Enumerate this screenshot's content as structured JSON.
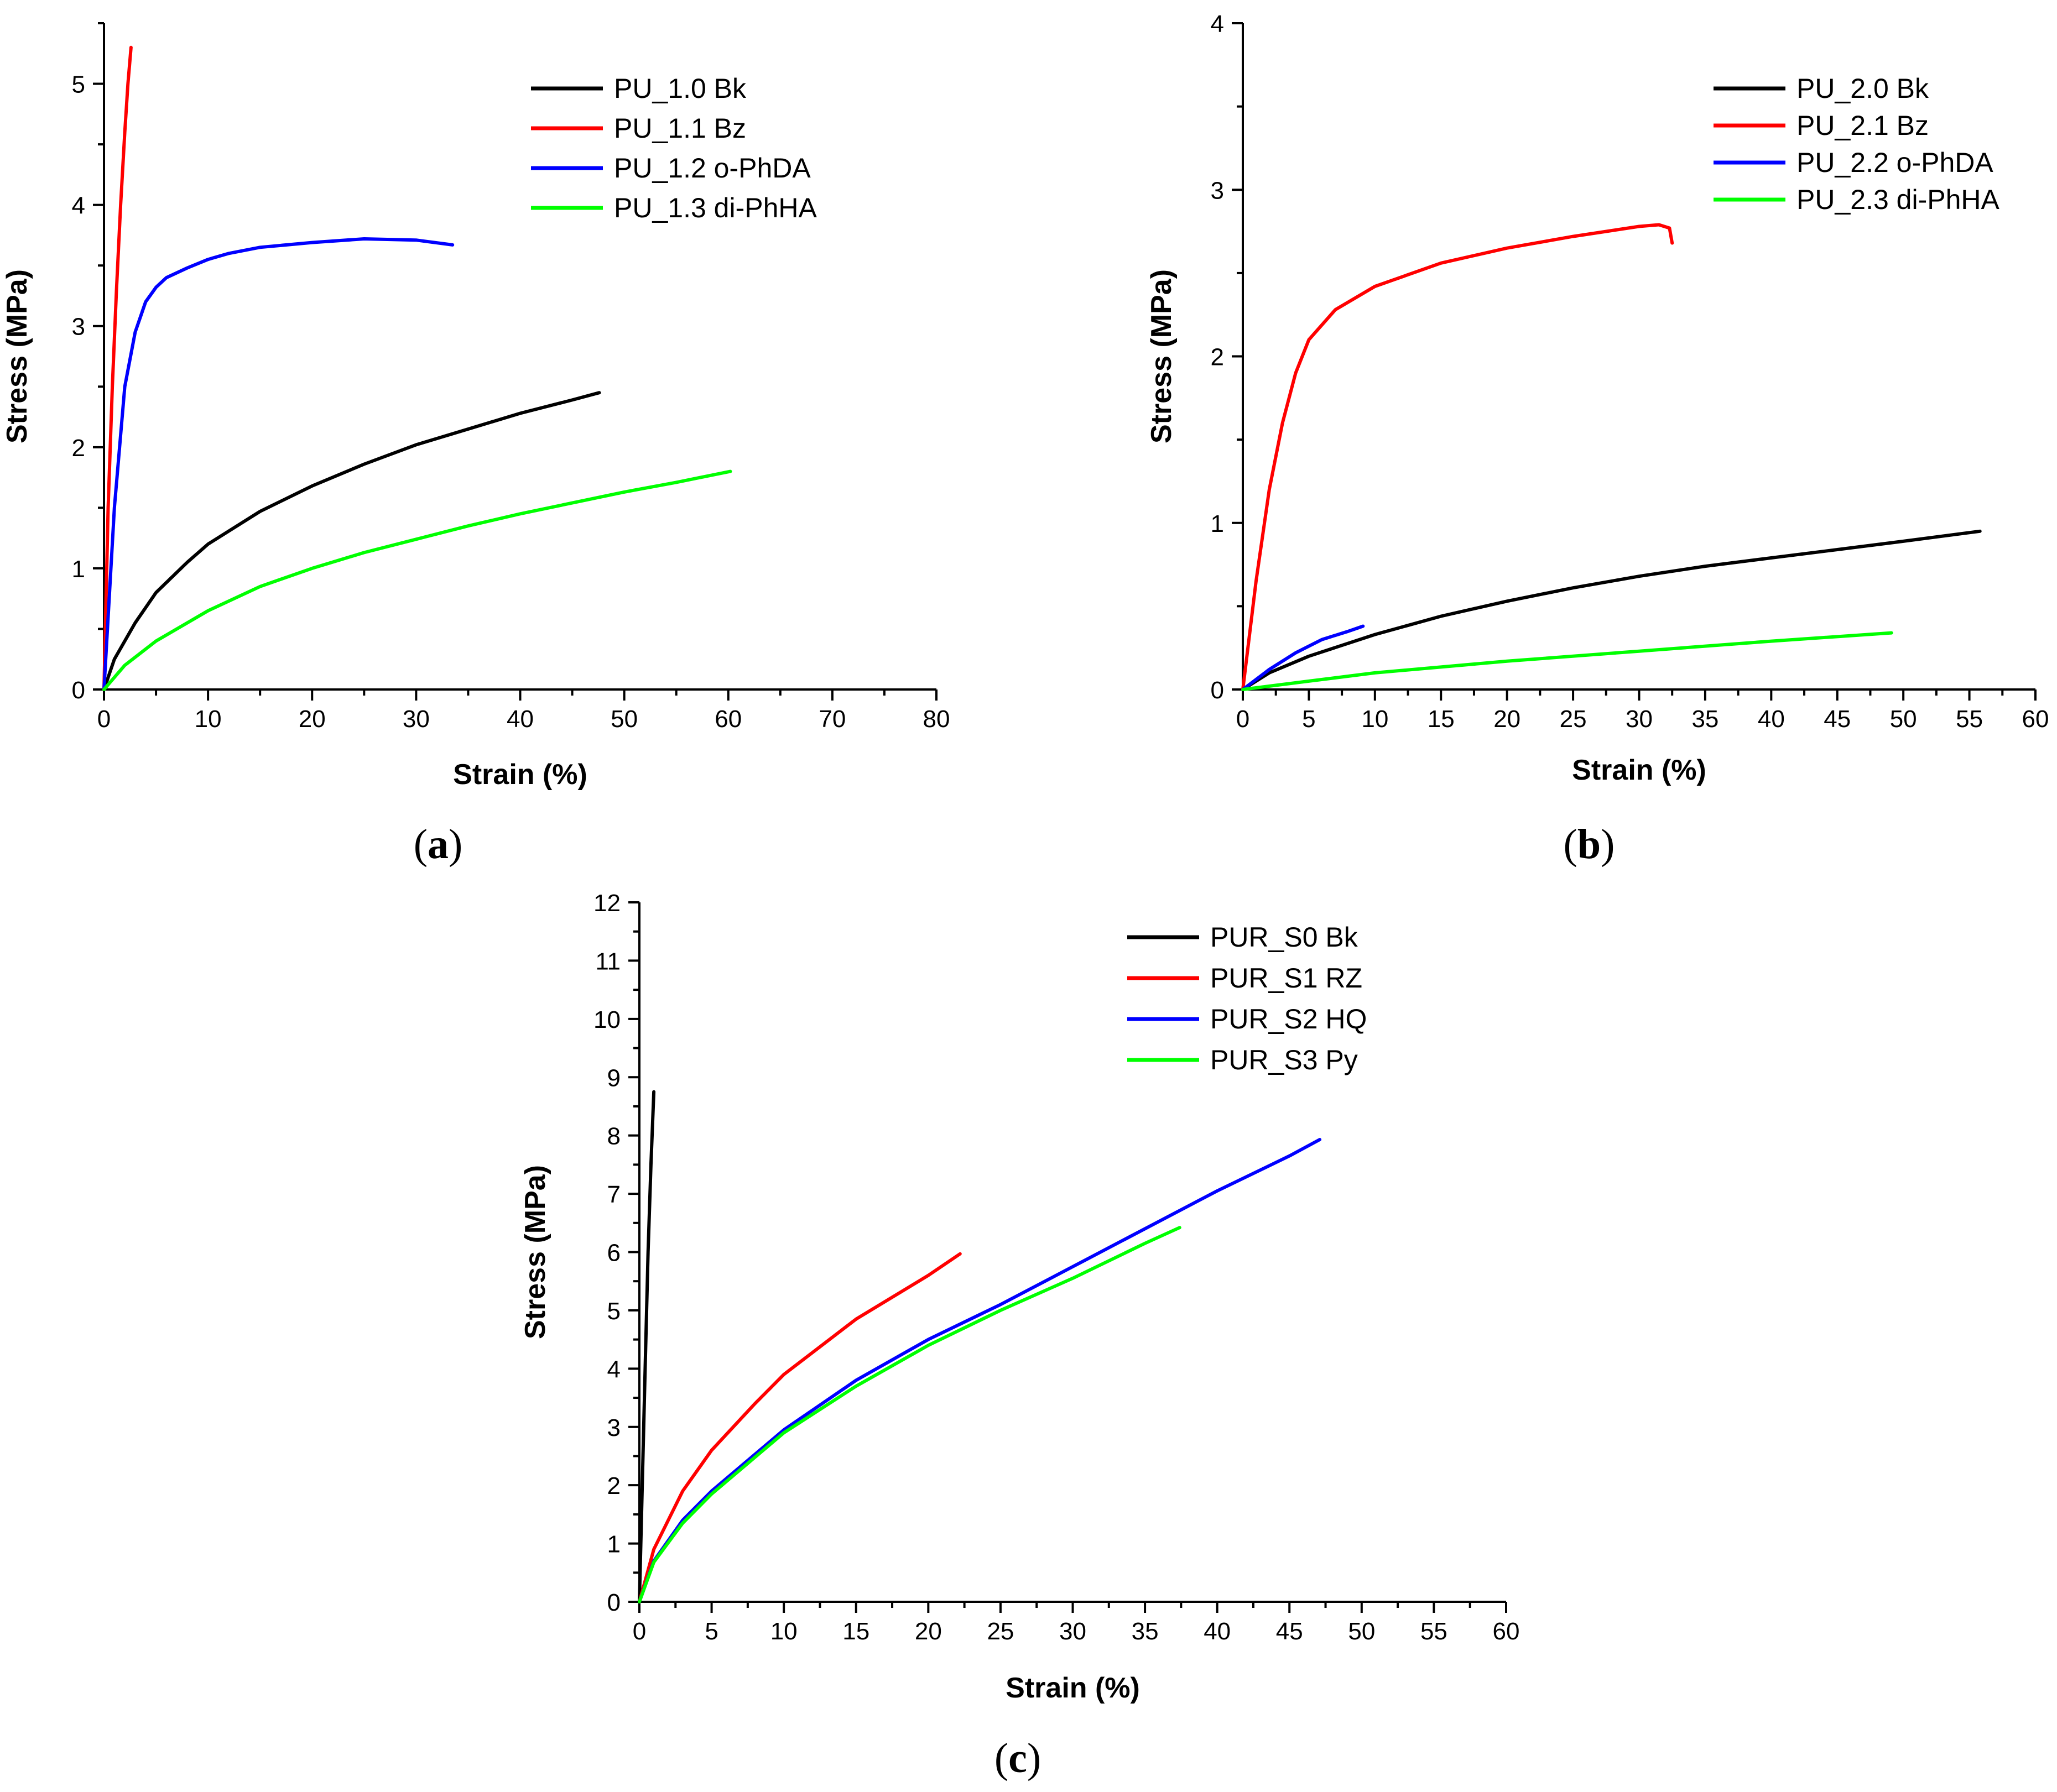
{
  "chart_data": [
    {
      "type": "line",
      "panel_label": "(a)",
      "xlabel": "Strain (%)",
      "ylabel": "Stress (MPa)",
      "xlim": [
        0,
        80
      ],
      "ylim": [
        0,
        5.5
      ],
      "xticks": [
        0,
        10,
        20,
        30,
        40,
        50,
        60,
        70,
        80
      ],
      "yticks": [
        0,
        1,
        2,
        3,
        4,
        5
      ],
      "legend_position": "top-right",
      "series": [
        {
          "name": "PU_1.0 Bk",
          "color": "#000000",
          "x": [
            0,
            1,
            3,
            5,
            8,
            10,
            15,
            20,
            25,
            30,
            35,
            40,
            45,
            47.6
          ],
          "y": [
            0,
            0.25,
            0.55,
            0.8,
            1.05,
            1.2,
            1.47,
            1.68,
            1.86,
            2.02,
            2.15,
            2.28,
            2.39,
            2.45
          ]
        },
        {
          "name": "PU_1.1 Bz",
          "color": "#ff0000",
          "x": [
            0,
            0.4,
            0.8,
            1.2,
            1.6,
            2.0,
            2.3,
            2.6
          ],
          "y": [
            0,
            1.5,
            2.5,
            3.3,
            4.0,
            4.6,
            5.0,
            5.3
          ]
        },
        {
          "name": "PU_1.2 o-PhDA",
          "color": "#0000ff",
          "x": [
            0,
            1,
            2,
            3,
            4,
            5,
            6,
            8,
            10,
            12,
            15,
            20,
            25,
            30,
            33.5
          ],
          "y": [
            0,
            1.5,
            2.5,
            2.95,
            3.2,
            3.32,
            3.4,
            3.48,
            3.55,
            3.6,
            3.65,
            3.69,
            3.72,
            3.71,
            3.67
          ]
        },
        {
          "name": "PU_1.3 di-PhHA",
          "color": "#00ff00",
          "x": [
            0,
            2,
            5,
            10,
            15,
            20,
            25,
            30,
            35,
            40,
            45,
            50,
            55,
            60.2
          ],
          "y": [
            0,
            0.2,
            0.4,
            0.65,
            0.85,
            1.0,
            1.13,
            1.24,
            1.35,
            1.45,
            1.54,
            1.63,
            1.71,
            1.8
          ]
        }
      ]
    },
    {
      "type": "line",
      "panel_label": "(b)",
      "xlabel": "Strain (%)",
      "ylabel": "Stress (MPa)",
      "xlim": [
        0,
        60
      ],
      "ylim": [
        0,
        4
      ],
      "xticks": [
        0,
        5,
        10,
        15,
        20,
        25,
        30,
        35,
        40,
        45,
        50,
        55,
        60
      ],
      "yticks": [
        0,
        1,
        2,
        3,
        4
      ],
      "legend_position": "top-right",
      "series": [
        {
          "name": "PU_2.0 Bk",
          "color": "#000000",
          "x": [
            0,
            2,
            5,
            10,
            15,
            20,
            25,
            30,
            35,
            40,
            45,
            50,
            55.8
          ],
          "y": [
            0,
            0.1,
            0.2,
            0.33,
            0.44,
            0.53,
            0.61,
            0.68,
            0.74,
            0.79,
            0.84,
            0.89,
            0.95
          ]
        },
        {
          "name": "PU_2.1 Bz",
          "color": "#ff0000",
          "x": [
            0,
            1,
            2,
            3,
            4,
            5,
            7,
            10,
            15,
            20,
            25,
            30,
            31.5,
            32.3,
            32.5
          ],
          "y": [
            0,
            0.65,
            1.2,
            1.6,
            1.9,
            2.1,
            2.28,
            2.42,
            2.56,
            2.65,
            2.72,
            2.78,
            2.79,
            2.77,
            2.68
          ]
        },
        {
          "name": "PU_2.2 o-PhDA",
          "color": "#0000ff",
          "x": [
            0,
            2,
            4,
            6,
            8,
            9.1
          ],
          "y": [
            0,
            0.12,
            0.22,
            0.3,
            0.35,
            0.38
          ]
        },
        {
          "name": "PU_2.3 di-PhHA",
          "color": "#00ff00",
          "x": [
            0,
            5,
            10,
            20,
            30,
            40,
            49.1
          ],
          "y": [
            0,
            0.05,
            0.1,
            0.17,
            0.23,
            0.29,
            0.34
          ]
        }
      ]
    },
    {
      "type": "line",
      "panel_label": "(c)",
      "xlabel": "Strain (%)",
      "ylabel": "Stress (MPa)",
      "xlim": [
        0,
        60
      ],
      "ylim": [
        0,
        12
      ],
      "xticks": [
        0,
        5,
        10,
        15,
        20,
        25,
        30,
        35,
        40,
        45,
        50,
        55,
        60
      ],
      "yticks": [
        0,
        1,
        2,
        3,
        4,
        5,
        6,
        7,
        8,
        9,
        10,
        11,
        12
      ],
      "legend_position": "top-right",
      "series": [
        {
          "name": "PUR_S0 Bk",
          "color": "#000000",
          "x": [
            0,
            0.2,
            0.4,
            0.6,
            0.8,
            1.0
          ],
          "y": [
            0,
            2.0,
            4.0,
            6.0,
            7.5,
            8.75
          ]
        },
        {
          "name": "PUR_S1 RZ",
          "color": "#ff0000",
          "x": [
            0,
            1,
            3,
            5,
            8,
            10,
            15,
            20,
            22.2
          ],
          "y": [
            0,
            0.9,
            1.9,
            2.6,
            3.4,
            3.9,
            4.85,
            5.6,
            5.97
          ]
        },
        {
          "name": "PUR_S2 HQ",
          "color": "#0000ff",
          "x": [
            0,
            1,
            3,
            5,
            10,
            15,
            20,
            25,
            30,
            35,
            40,
            45,
            47.1
          ],
          "y": [
            0,
            0.7,
            1.4,
            1.9,
            2.95,
            3.8,
            4.5,
            5.1,
            5.75,
            6.4,
            7.05,
            7.65,
            7.93
          ]
        },
        {
          "name": "PUR_S3 Py",
          "color": "#00ff00",
          "x": [
            0,
            1,
            3,
            5,
            10,
            15,
            20,
            25,
            30,
            35,
            37.4
          ],
          "y": [
            0,
            0.68,
            1.35,
            1.85,
            2.9,
            3.7,
            4.4,
            5.0,
            5.55,
            6.15,
            6.42
          ]
        }
      ]
    }
  ]
}
